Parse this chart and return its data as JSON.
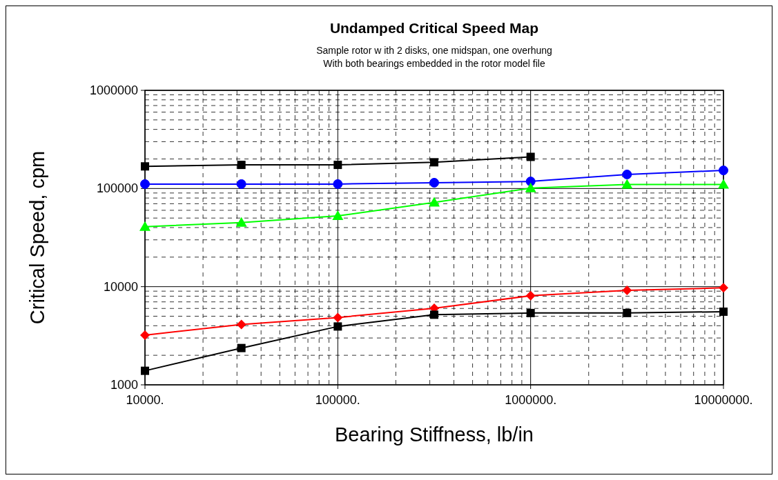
{
  "chart_data": {
    "type": "line",
    "title": "Undamped Critical Speed Map",
    "subtitle": "Sample rotor w ith 2 disks, one midspan, one overhung\nWith both bearings embedded in the rotor model file",
    "xlabel": "Bearing Stiffness, lb/in",
    "ylabel": "Critical Speed, cpm",
    "log": "xy",
    "grid": true,
    "xlim": [
      10000,
      10000000
    ],
    "xticks": [
      {
        "value": 10000,
        "label": "10000."
      },
      {
        "value": 100000,
        "label": "100000."
      },
      {
        "value": 1000000,
        "label": "1000000."
      },
      {
        "value": 10000000,
        "label": "10000000."
      }
    ],
    "ylim": [
      1000,
      1000000
    ],
    "yticks": [
      1000,
      10000,
      100000,
      1000000
    ],
    "x": [
      10000,
      31623,
      100000,
      316228,
      1000000,
      3162278,
      10000000
    ],
    "series": [
      {
        "color": "#000000",
        "marker": "square",
        "x": [
          10000,
          31623,
          100000,
          316228,
          1000000
        ],
        "values": [
          168000,
          174000,
          174000,
          185000,
          210000
        ]
      },
      {
        "color": "#0000ff",
        "marker": "circle",
        "values": [
          111000,
          111000,
          111000,
          114600,
          118000,
          139000,
          153000
        ]
      },
      {
        "color": "#00ff00",
        "marker": "triangle",
        "values": [
          40800,
          45000,
          52600,
          72200,
          101000,
          110000,
          110000
        ]
      },
      {
        "color": "#ff0000",
        "marker": "diamond",
        "values": [
          3210,
          4120,
          4850,
          6030,
          8090,
          9160,
          9730
        ]
      },
      {
        "color": "#000000",
        "marker": "square",
        "values": [
          1390,
          2370,
          3930,
          5180,
          5390,
          5390,
          5560
        ]
      }
    ]
  }
}
